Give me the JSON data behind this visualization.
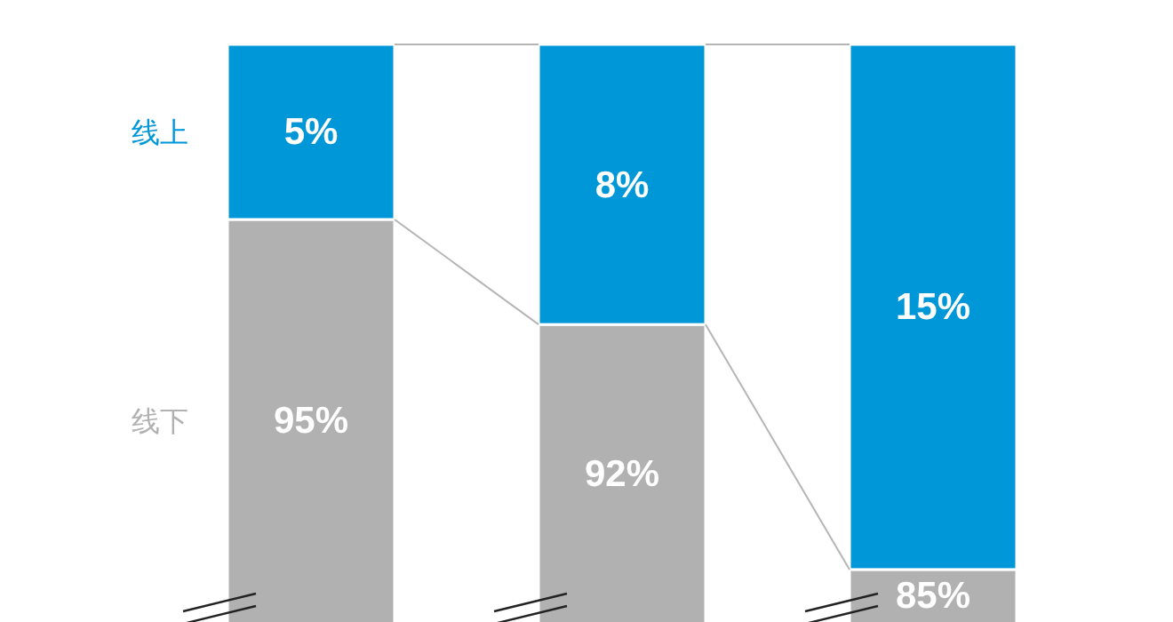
{
  "chart_data": {
    "type": "bar",
    "stacked": true,
    "categories": [
      null,
      null,
      null
    ],
    "series": [
      {
        "name": "线下",
        "color": "#b1b1b1",
        "values": [
          95,
          92,
          85
        ],
        "value_labels": [
          "95%",
          "92%",
          "85%"
        ]
      },
      {
        "name": "线上",
        "color": "#0097d9",
        "values": [
          5,
          8,
          15
        ],
        "value_labels": [
          "5%",
          "8%",
          "15%"
        ]
      }
    ]
  }
}
